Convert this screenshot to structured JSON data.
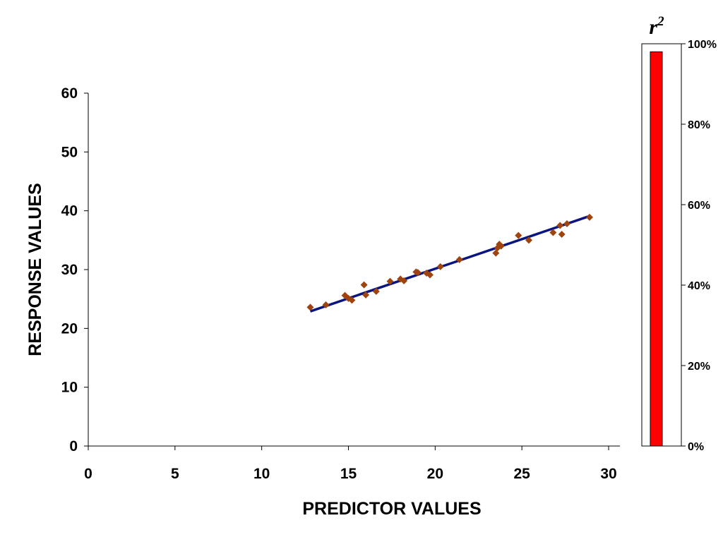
{
  "chart_data": [
    {
      "type": "scatter",
      "title": "",
      "xlabel": "PREDICTOR VALUES",
      "ylabel": "RESPONSE VALUES",
      "xlim": [
        0,
        30
      ],
      "ylim": [
        0,
        60
      ],
      "x_ticks": [
        0,
        5,
        10,
        15,
        20,
        25,
        30
      ],
      "y_ticks": [
        0,
        10,
        20,
        30,
        40,
        50,
        60
      ],
      "grid": false,
      "series": [
        {
          "marker": "diamond",
          "color": "#A0440F",
          "x": [
            12.8,
            13.7,
            14.8,
            15.0,
            15.2,
            15.9,
            16.0,
            16.6,
            17.4,
            18.0,
            18.2,
            18.9,
            19.0,
            19.5,
            19.7,
            20.3,
            21.4,
            23.5,
            23.7,
            23.6,
            23.8,
            24.8,
            25.4,
            26.8,
            27.2,
            27.3,
            27.6,
            28.9
          ],
          "y": [
            23.6,
            24.0,
            25.6,
            25.1,
            24.8,
            27.4,
            25.7,
            26.3,
            28.0,
            28.4,
            28.1,
            29.6,
            29.5,
            29.4,
            29.1,
            30.5,
            31.7,
            32.8,
            34.3,
            33.7,
            34.0,
            35.8,
            35.0,
            36.3,
            37.5,
            36.0,
            37.8,
            38.9
          ]
        }
      ],
      "trendline": {
        "color": "#0A1580",
        "x": [
          12.8,
          28.9
        ],
        "y": [
          22.9,
          39.1
        ]
      }
    },
    {
      "type": "bar",
      "title": "r",
      "title_superscript": "2",
      "categories": [
        "r2"
      ],
      "values": [
        98
      ],
      "unit": "%",
      "ylim": [
        0,
        100
      ],
      "y_ticks": [
        "0%",
        "20%",
        "40%",
        "60%",
        "80%",
        "100%"
      ],
      "bar_color": "#FF0000"
    }
  ]
}
